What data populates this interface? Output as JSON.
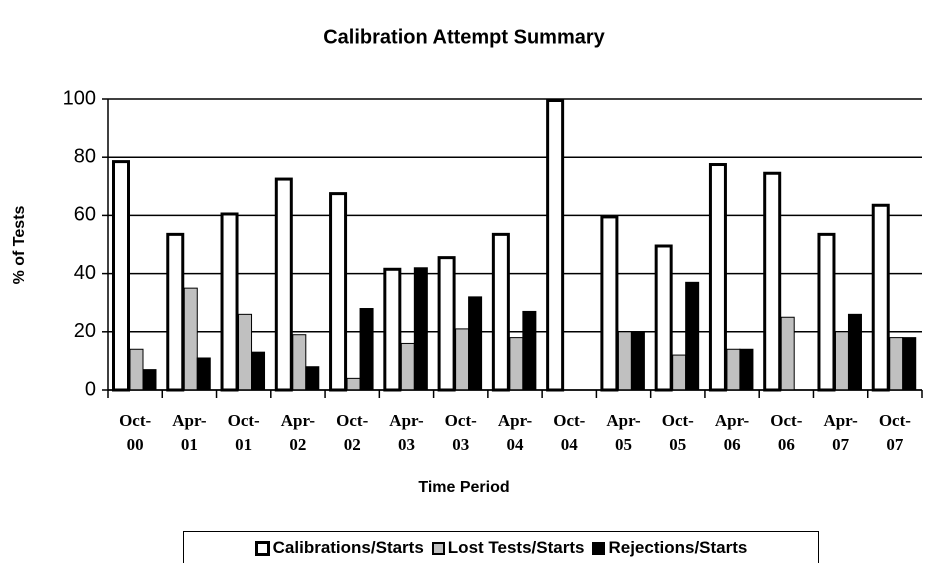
{
  "chart_data": {
    "type": "bar",
    "title": "Calibration Attempt Summary",
    "x_label": "Time Period",
    "y_label": "% of Tests",
    "categories": [
      "Oct-00",
      "Apr-01",
      "Oct-01",
      "Apr-02",
      "Oct-02",
      "Apr-03",
      "Oct-03",
      "Apr-04",
      "Oct-04",
      "Apr-05",
      "Oct-05",
      "Apr-06",
      "Oct-06",
      "Apr-07",
      "Oct-07"
    ],
    "series": [
      {
        "name": "Calibrations/Starts",
        "color": "#ffffff",
        "values": [
          79,
          54,
          61,
          73,
          68,
          42,
          46,
          54,
          100,
          60,
          50,
          78,
          75,
          54,
          64
        ]
      },
      {
        "name": "Lost Tests/Starts",
        "color": "#c0c0c0",
        "values": [
          14,
          35,
          26,
          19,
          4,
          16,
          21,
          18,
          0,
          20,
          12,
          14,
          25,
          20,
          18
        ]
      },
      {
        "name": "Rejections/Starts",
        "color": "#000000",
        "values": [
          7,
          11,
          13,
          8,
          28,
          42,
          32,
          27,
          0,
          20,
          37,
          14,
          0,
          26,
          18
        ]
      }
    ],
    "ylim": [
      0,
      100
    ],
    "yticks": [
      0,
      20,
      40,
      60,
      80,
      100
    ],
    "grid": true,
    "legend": "bottom"
  }
}
